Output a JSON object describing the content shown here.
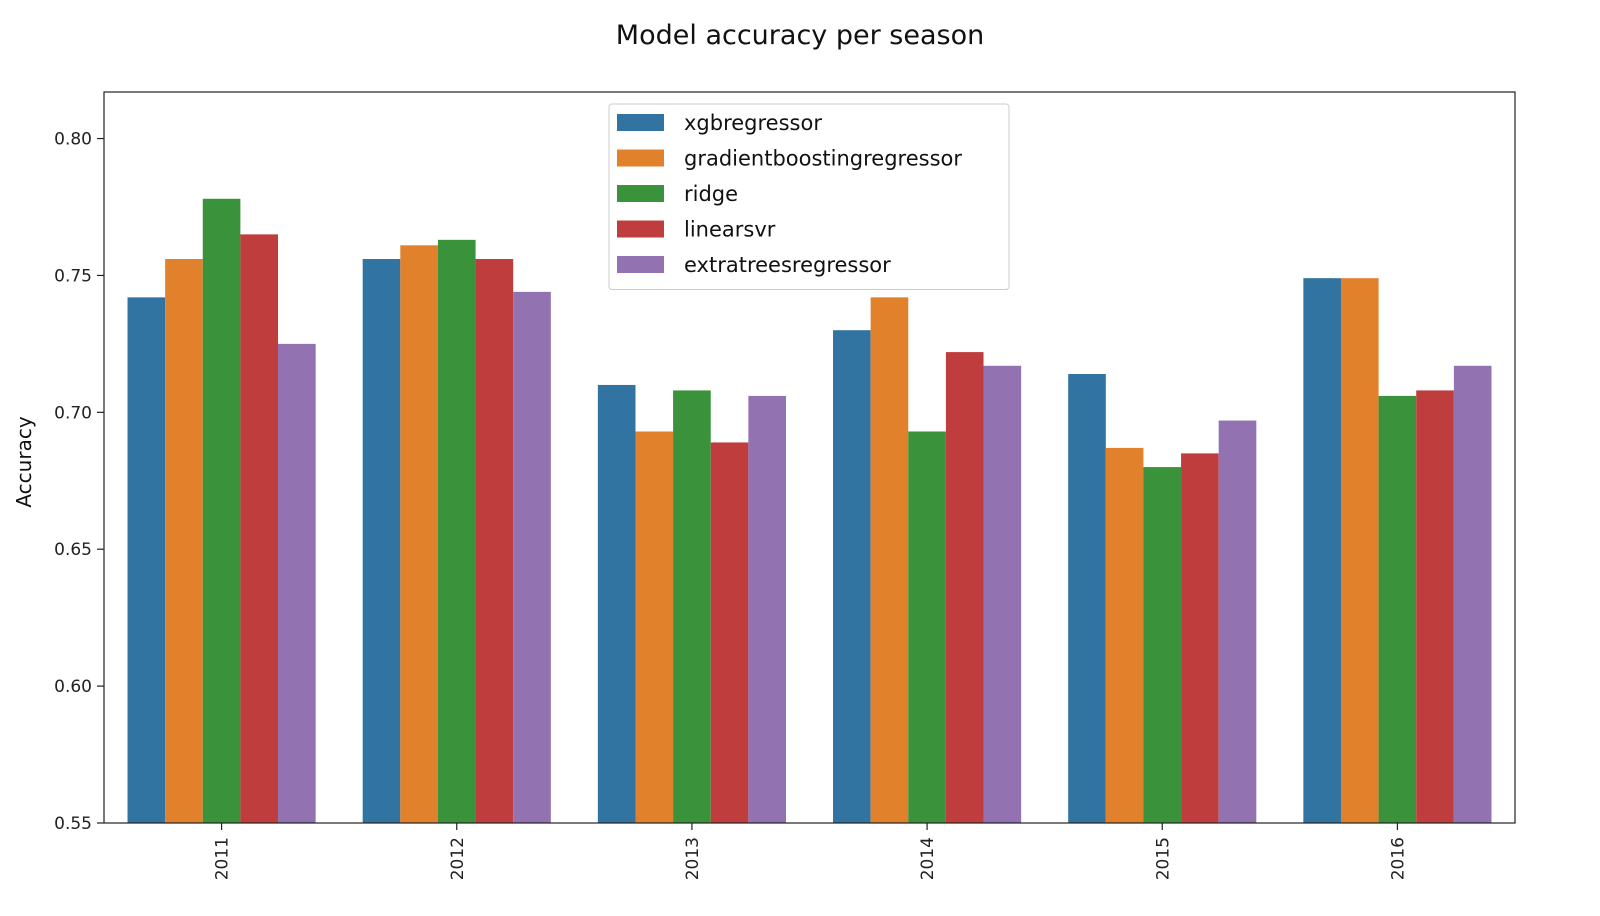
{
  "chart_data": {
    "type": "bar",
    "title": "Model accuracy per season",
    "xlabel": "",
    "ylabel": "Accuracy",
    "categories": [
      "2011",
      "2012",
      "2013",
      "2014",
      "2015",
      "2016"
    ],
    "ylim": [
      0.55,
      0.817
    ],
    "yticks": [
      "0.55",
      "0.60",
      "0.65",
      "0.70",
      "0.75",
      "0.80"
    ],
    "grid": false,
    "legend_position": "top-center",
    "series": [
      {
        "name": "xgbregressor",
        "color": "#3274a1",
        "values": [
          0.742,
          0.756,
          0.71,
          0.73,
          0.714,
          0.749
        ]
      },
      {
        "name": "gradientboostingregressor",
        "color": "#e1812c",
        "values": [
          0.756,
          0.761,
          0.693,
          0.742,
          0.687,
          0.749
        ]
      },
      {
        "name": "ridge",
        "color": "#3a923a",
        "values": [
          0.778,
          0.763,
          0.708,
          0.693,
          0.68,
          0.706
        ]
      },
      {
        "name": "linearsvr",
        "color": "#c03d3e",
        "values": [
          0.765,
          0.756,
          0.689,
          0.722,
          0.685,
          0.708
        ]
      },
      {
        "name": "extratreesregressor",
        "color": "#9372b2",
        "values": [
          0.725,
          0.744,
          0.706,
          0.717,
          0.697,
          0.717
        ]
      }
    ]
  }
}
